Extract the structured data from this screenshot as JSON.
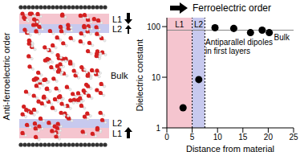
{
  "chart_data": {
    "type": "scatter",
    "title": "Ferroelectric order",
    "x_label": "Distance from material",
    "y_label": "Dielectric constant",
    "x": [
      3.2,
      6.3,
      9.5,
      13.2,
      16.5,
      18.8,
      20.2
    ],
    "values": [
      2.5,
      9,
      95,
      92,
      76,
      85,
      76
    ],
    "color": "#000000",
    "log": "y",
    "xlim": [
      0,
      25
    ],
    "xticks": [
      0,
      5,
      10,
      15,
      20,
      25
    ],
    "ylim": [
      1,
      150
    ],
    "yticks": [
      1,
      10,
      100
    ],
    "regions": [
      {
        "label": "L1",
        "x": [
          0,
          5
        ],
        "color": "#f5c5cf"
      },
      {
        "label": "L2",
        "x": [
          5,
          7.5
        ],
        "color": "#c7c9ee"
      }
    ],
    "reference_lines": [
      {
        "y": 85,
        "label": "Bulk"
      }
    ],
    "annotations": [
      "Antiparallel dipoles in first layers"
    ]
  },
  "illustration": {
    "side_label": "Anti-ferroelectric order",
    "bulk_label": "Bulk",
    "layers": [
      {
        "label": "L1",
        "color": "#f5c5cf"
      },
      {
        "label": "L2",
        "color": "#c7c9ee"
      }
    ]
  }
}
